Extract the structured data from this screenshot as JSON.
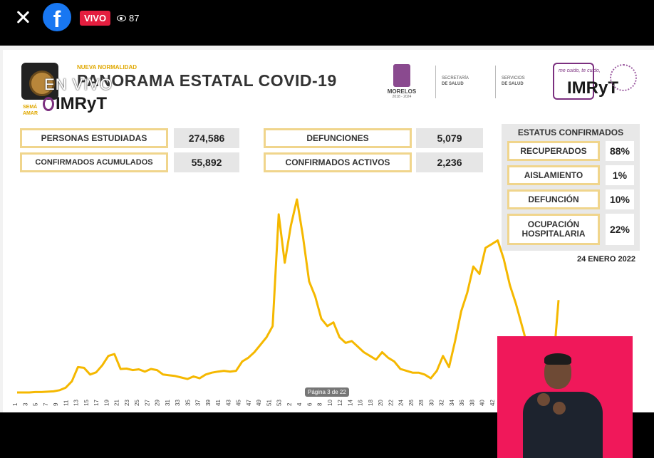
{
  "topbar": {
    "live_label": "VIVO",
    "viewer_count": "87",
    "fb_glyph": "f"
  },
  "slide": {
    "nueva_normalidad": "NUEVA NORMALIDAD",
    "overlay_live": "EN VIVO",
    "semaforo": [
      "SEMÁ",
      "AMAR"
    ],
    "title": "PANORAMA ESTATAL COVID-19",
    "morelos": "MORELOS",
    "morelos_period": "2018 - 2024",
    "secretaria": [
      "SECRETARÍA",
      "DE SALUD"
    ],
    "servicios": [
      "SERVICIOS",
      "DE SALUD"
    ],
    "me_cuido": "me cuido, te cuido,",
    "brand": "IMRyT",
    "date": "24 ENERO 2022",
    "page_indicator": "Página 3 de 22"
  },
  "stats": {
    "personas_label": "PERSONAS ESTUDIADAS",
    "personas_value": "274,586",
    "confirmados_label": "CONFIRMADOS ACUMULADOS",
    "confirmados_value": "55,892",
    "defunciones_label": "DEFUNCIONES",
    "defunciones_value": "5,079",
    "activos_label": "CONFIRMADOS ACTIVOS",
    "activos_value": "2,236"
  },
  "status": {
    "title": "ESTATUS CONFIRMADOS",
    "items": [
      {
        "label": "RECUPERADOS",
        "value": "88%"
      },
      {
        "label": "AISLAMIENTO",
        "value": "1%"
      },
      {
        "label": "DEFUNCIÓN",
        "value": "10%"
      },
      {
        "label": "OCUPACIÓN HOSPITALARIA",
        "value": "22%"
      }
    ]
  },
  "colors": {
    "accent_gold": "#f5b800",
    "box_border": "#f0d58c",
    "brand_purple": "#7b2f7f",
    "live_red": "#e41e3f",
    "interpreter_bg": "#f0185a"
  },
  "chart_data": {
    "type": "line",
    "title": "",
    "xlabel": "",
    "ylabel": "",
    "x_tick_labels": [
      "1",
      "3",
      "5",
      "7",
      "9",
      "11",
      "13",
      "15",
      "17",
      "19",
      "21",
      "23",
      "25",
      "27",
      "29",
      "31",
      "33",
      "35",
      "37",
      "39",
      "41",
      "43",
      "45",
      "47",
      "49",
      "51",
      "53",
      "2",
      "4",
      "6",
      "8",
      "10",
      "12",
      "14",
      "16",
      "18",
      "20",
      "22",
      "24",
      "26",
      "28",
      "30",
      "32",
      "34",
      "36",
      "38",
      "40",
      "42"
    ],
    "series": [
      {
        "values": [
          0.2,
          0.2,
          0.2,
          0.3,
          0.3,
          0.4,
          0.5,
          0.8,
          1.5,
          3.2,
          7,
          6.8,
          5,
          5.6,
          7.5,
          10,
          10.5,
          6.5,
          6.6,
          6.2,
          6.4,
          5.8,
          6.5,
          6.2,
          5,
          4.8,
          4.6,
          4.2,
          3.8,
          4.5,
          4,
          5,
          5.5,
          5.8,
          6,
          5.8,
          6,
          8.5,
          9.5,
          11,
          13,
          15,
          18,
          48,
          35,
          45,
          52,
          42,
          30,
          26,
          20,
          18,
          19,
          15,
          13.5,
          14,
          12.5,
          11,
          10,
          9,
          11,
          9.5,
          8.5,
          6.5,
          6,
          5.5,
          5.5,
          5,
          4,
          6,
          10,
          7,
          14,
          22,
          27,
          34,
          32,
          39,
          40,
          41,
          36,
          29,
          24,
          18,
          12,
          7,
          3,
          1.2,
          5,
          25
        ]
      }
    ]
  }
}
